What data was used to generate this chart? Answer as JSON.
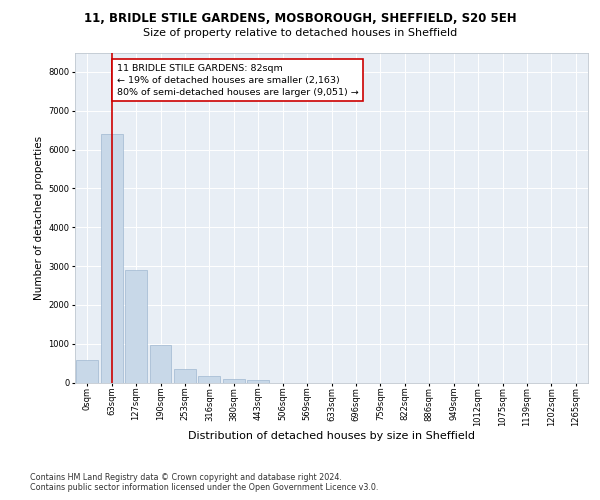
{
  "title_line1": "11, BRIDLE STILE GARDENS, MOSBOROUGH, SHEFFIELD, S20 5EH",
  "title_line2": "Size of property relative to detached houses in Sheffield",
  "xlabel": "Distribution of detached houses by size in Sheffield",
  "ylabel": "Number of detached properties",
  "bar_color": "#c8d8e8",
  "bar_edge_color": "#a0b8d0",
  "vline_color": "#cc0000",
  "vline_x": 1,
  "annotation_text": "11 BRIDLE STILE GARDENS: 82sqm\n← 19% of detached houses are smaller (2,163)\n80% of semi-detached houses are larger (9,051) →",
  "annotation_box_color": "#cc0000",
  "categories": [
    "0sqm",
    "63sqm",
    "127sqm",
    "190sqm",
    "253sqm",
    "316sqm",
    "380sqm",
    "443sqm",
    "506sqm",
    "569sqm",
    "633sqm",
    "696sqm",
    "759sqm",
    "822sqm",
    "886sqm",
    "949sqm",
    "1012sqm",
    "1075sqm",
    "1139sqm",
    "1202sqm",
    "1265sqm"
  ],
  "values": [
    580,
    6400,
    2900,
    960,
    360,
    160,
    90,
    60,
    0,
    0,
    0,
    0,
    0,
    0,
    0,
    0,
    0,
    0,
    0,
    0,
    0
  ],
  "ylim": [
    0,
    8500
  ],
  "yticks": [
    0,
    1000,
    2000,
    3000,
    4000,
    5000,
    6000,
    7000,
    8000
  ],
  "footer_text": "Contains HM Land Registry data © Crown copyright and database right 2024.\nContains public sector information licensed under the Open Government Licence v3.0.",
  "bg_color": "#ffffff",
  "plot_bg_color": "#e8eef5",
  "title1_fontsize": 8.5,
  "title2_fontsize": 8.0,
  "ylabel_fontsize": 7.5,
  "xlabel_fontsize": 8.0,
  "tick_fontsize": 6.0,
  "annot_fontsize": 6.8,
  "footer_fontsize": 5.8
}
